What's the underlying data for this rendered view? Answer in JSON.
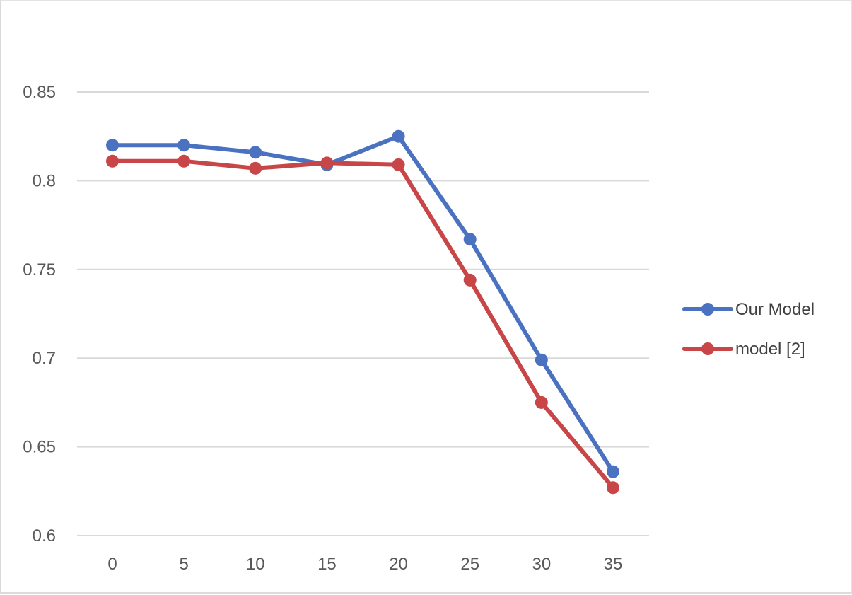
{
  "chart_data": {
    "type": "line",
    "title": "",
    "xlabel": "",
    "ylabel": "",
    "x": [
      0,
      5,
      10,
      15,
      20,
      25,
      30,
      35
    ],
    "categories": [
      "0",
      "5",
      "10",
      "15",
      "20",
      "25",
      "30",
      "35"
    ],
    "ylim": [
      0.6,
      0.85
    ],
    "yticks": [
      0.6,
      0.65,
      0.7,
      0.75,
      0.8,
      0.85
    ],
    "ytick_labels": [
      "0.6",
      "0.65",
      "0.7",
      "0.75",
      "0.8",
      "0.85"
    ],
    "grid": "horizontal",
    "legend_position": "right",
    "series": [
      {
        "name": "Our Model",
        "color": "#4a72c0",
        "marker": "circle",
        "values": [
          0.82,
          0.82,
          0.816,
          0.809,
          0.825,
          0.767,
          0.699,
          0.636
        ]
      },
      {
        "name": "model [2]",
        "color": "#c84548",
        "marker": "circle",
        "values": [
          0.811,
          0.811,
          0.807,
          0.81,
          0.809,
          0.744,
          0.675,
          0.627
        ]
      }
    ]
  }
}
